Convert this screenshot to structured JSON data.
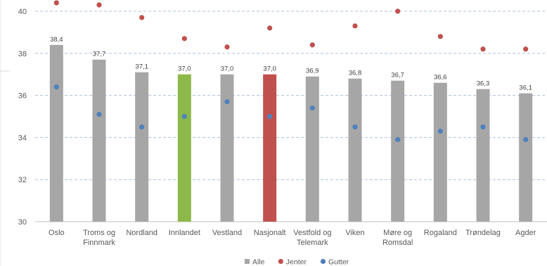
{
  "chart_data": {
    "type": "bar",
    "categories": [
      [
        "Oslo"
      ],
      [
        "Troms og",
        "Finnmark"
      ],
      [
        "Nordland"
      ],
      [
        "Innlandet"
      ],
      [
        "Vestland"
      ],
      [
        "Nasjonalt"
      ],
      [
        "Vestfold og",
        "Telemark"
      ],
      [
        "Viken"
      ],
      [
        "Møre og",
        "Romsdal"
      ],
      [
        "Rogaland"
      ],
      [
        "Trøndelag"
      ],
      [
        "Agder"
      ]
    ],
    "series": [
      {
        "name": "Alle",
        "kind": "bar",
        "color": "#a6a6a6",
        "values": [
          38.4,
          37.7,
          37.1,
          37.0,
          37.0,
          37.0,
          36.9,
          36.8,
          36.7,
          36.6,
          36.3,
          36.1
        ],
        "labels": [
          "38,4",
          "37,7",
          "37,1",
          "37,0",
          "37,0",
          "37,0",
          "36,9",
          "36,8",
          "36,7",
          "36,6",
          "36,3",
          "36,1"
        ],
        "highlight": {
          "3": "#8db84a",
          "5": "#c0504d"
        }
      },
      {
        "name": "Jenter",
        "kind": "marker",
        "color": "#c0504d",
        "values": [
          40.4,
          40.3,
          39.7,
          38.7,
          38.3,
          39.2,
          38.4,
          39.3,
          40.0,
          38.8,
          38.2,
          38.2
        ]
      },
      {
        "name": "Gutter",
        "kind": "marker",
        "color": "#4f81bd",
        "values": [
          36.4,
          35.1,
          34.5,
          35.0,
          35.7,
          35.0,
          35.4,
          34.5,
          33.9,
          34.3,
          34.5,
          33.9
        ]
      }
    ],
    "yticks": [
      "30",
      "32",
      "34",
      "36",
      "38",
      "40"
    ],
    "ylim": [
      30,
      40.6
    ],
    "grid": true,
    "legend_position": "bottom-center",
    "title": "",
    "xlabel": "",
    "ylabel": ""
  }
}
